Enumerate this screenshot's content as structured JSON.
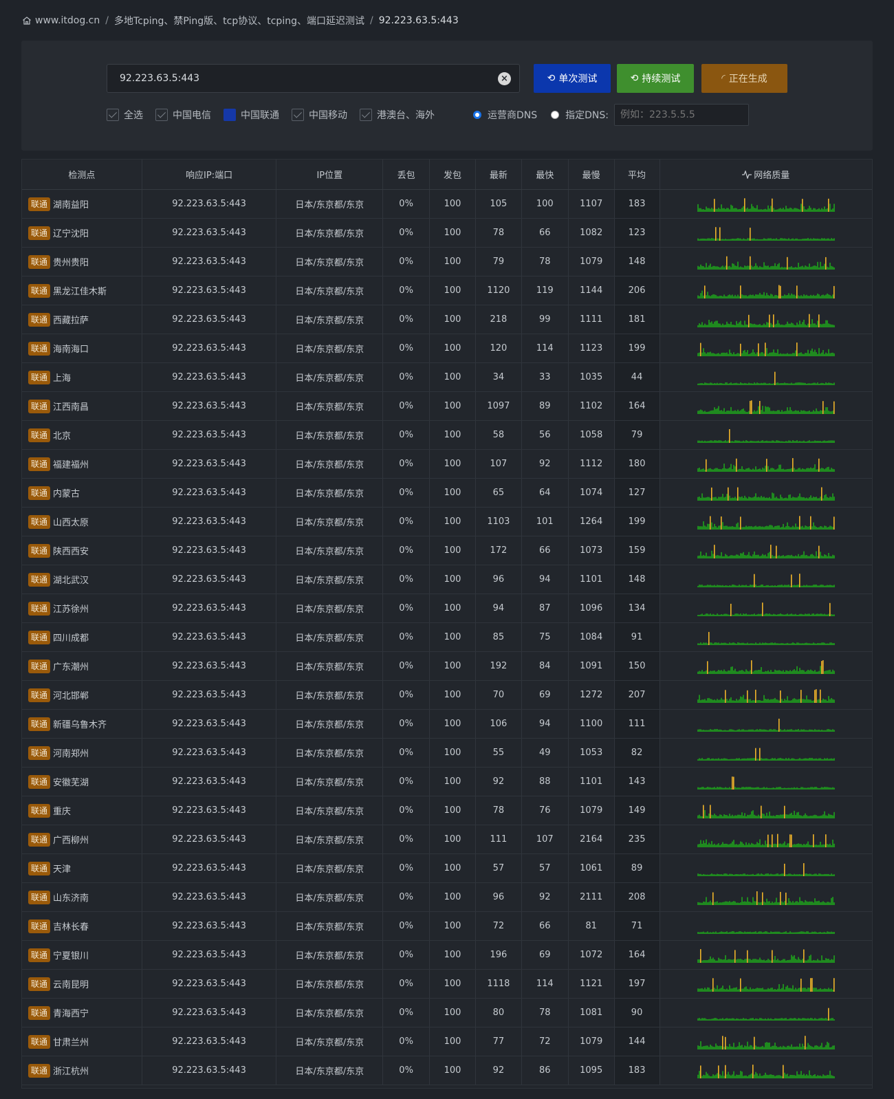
{
  "breadcrumb": {
    "home": "www.itdog.cn",
    "section": "多地Tcping、禁Ping版、tcp协议、tcping、端口延迟测试",
    "current": "92.223.63.5:443"
  },
  "search": {
    "value": "92.223.63.5:443",
    "clear_label": "×"
  },
  "buttons": {
    "single": "单次测试",
    "continuous": "持续测试",
    "generating": "正在生成"
  },
  "filters": [
    {
      "label": "全选",
      "style": "check"
    },
    {
      "label": "中国电信",
      "style": "check"
    },
    {
      "label": "中国联通",
      "style": "selected"
    },
    {
      "label": "中国移动",
      "style": "check"
    },
    {
      "label": "港澳台、海外",
      "style": "check"
    }
  ],
  "dns": {
    "isp_label": "运营商DNS",
    "custom_label": "指定DNS:",
    "custom_placeholder": "例如：223.5.5.5"
  },
  "table": {
    "headers": [
      "检测点",
      "响应IP:端口",
      "IP位置",
      "丢包",
      "发包",
      "最新",
      "最快",
      "最慢",
      "平均",
      "网络质量"
    ],
    "rows": [
      {
        "isp": "联通",
        "node": "湖南益阳",
        "ip": "92.223.63.5:443",
        "loc": "日本/东京都/东京",
        "loss": "0%",
        "sent": "100",
        "last": "105",
        "min": "100",
        "max": "1107",
        "avg": "183"
      },
      {
        "isp": "联通",
        "node": "辽宁沈阳",
        "ip": "92.223.63.5:443",
        "loc": "日本/东京都/东京",
        "loss": "0%",
        "sent": "100",
        "last": "78",
        "min": "66",
        "max": "1082",
        "avg": "123"
      },
      {
        "isp": "联通",
        "node": "贵州贵阳",
        "ip": "92.223.63.5:443",
        "loc": "日本/东京都/东京",
        "loss": "0%",
        "sent": "100",
        "last": "79",
        "min": "78",
        "max": "1079",
        "avg": "148"
      },
      {
        "isp": "联通",
        "node": "黑龙江佳木斯",
        "ip": "92.223.63.5:443",
        "loc": "日本/东京都/东京",
        "loss": "0%",
        "sent": "100",
        "last": "1120",
        "min": "119",
        "max": "1144",
        "avg": "206"
      },
      {
        "isp": "联通",
        "node": "西藏拉萨",
        "ip": "92.223.63.5:443",
        "loc": "日本/东京都/东京",
        "loss": "0%",
        "sent": "100",
        "last": "218",
        "min": "99",
        "max": "1111",
        "avg": "181"
      },
      {
        "isp": "联通",
        "node": "海南海口",
        "ip": "92.223.63.5:443",
        "loc": "日本/东京都/东京",
        "loss": "0%",
        "sent": "100",
        "last": "120",
        "min": "114",
        "max": "1123",
        "avg": "199"
      },
      {
        "isp": "联通",
        "node": "上海",
        "ip": "92.223.63.5:443",
        "loc": "日本/东京都/东京",
        "loss": "0%",
        "sent": "100",
        "last": "34",
        "min": "33",
        "max": "1035",
        "avg": "44"
      },
      {
        "isp": "联通",
        "node": "江西南昌",
        "ip": "92.223.63.5:443",
        "loc": "日本/东京都/东京",
        "loss": "0%",
        "sent": "100",
        "last": "1097",
        "min": "89",
        "max": "1102",
        "avg": "164"
      },
      {
        "isp": "联通",
        "node": "北京",
        "ip": "92.223.63.5:443",
        "loc": "日本/东京都/东京",
        "loss": "0%",
        "sent": "100",
        "last": "58",
        "min": "56",
        "max": "1058",
        "avg": "79"
      },
      {
        "isp": "联通",
        "node": "福建福州",
        "ip": "92.223.63.5:443",
        "loc": "日本/东京都/东京",
        "loss": "0%",
        "sent": "100",
        "last": "107",
        "min": "92",
        "max": "1112",
        "avg": "180"
      },
      {
        "isp": "联通",
        "node": "内蒙古",
        "ip": "92.223.63.5:443",
        "loc": "日本/东京都/东京",
        "loss": "0%",
        "sent": "100",
        "last": "65",
        "min": "64",
        "max": "1074",
        "avg": "127"
      },
      {
        "isp": "联通",
        "node": "山西太原",
        "ip": "92.223.63.5:443",
        "loc": "日本/东京都/东京",
        "loss": "0%",
        "sent": "100",
        "last": "1103",
        "min": "101",
        "max": "1264",
        "avg": "199"
      },
      {
        "isp": "联通",
        "node": "陕西西安",
        "ip": "92.223.63.5:443",
        "loc": "日本/东京都/东京",
        "loss": "0%",
        "sent": "100",
        "last": "172",
        "min": "66",
        "max": "1073",
        "avg": "159"
      },
      {
        "isp": "联通",
        "node": "湖北武汉",
        "ip": "92.223.63.5:443",
        "loc": "日本/东京都/东京",
        "loss": "0%",
        "sent": "100",
        "last": "96",
        "min": "94",
        "max": "1101",
        "avg": "148"
      },
      {
        "isp": "联通",
        "node": "江苏徐州",
        "ip": "92.223.63.5:443",
        "loc": "日本/东京都/东京",
        "loss": "0%",
        "sent": "100",
        "last": "94",
        "min": "87",
        "max": "1096",
        "avg": "134"
      },
      {
        "isp": "联通",
        "node": "四川成都",
        "ip": "92.223.63.5:443",
        "loc": "日本/东京都/东京",
        "loss": "0%",
        "sent": "100",
        "last": "85",
        "min": "75",
        "max": "1084",
        "avg": "91"
      },
      {
        "isp": "联通",
        "node": "广东潮州",
        "ip": "92.223.63.5:443",
        "loc": "日本/东京都/东京",
        "loss": "0%",
        "sent": "100",
        "last": "192",
        "min": "84",
        "max": "1091",
        "avg": "150"
      },
      {
        "isp": "联通",
        "node": "河北邯郸",
        "ip": "92.223.63.5:443",
        "loc": "日本/东京都/东京",
        "loss": "0%",
        "sent": "100",
        "last": "70",
        "min": "69",
        "max": "1272",
        "avg": "207"
      },
      {
        "isp": "联通",
        "node": "新疆乌鲁木齐",
        "ip": "92.223.63.5:443",
        "loc": "日本/东京都/东京",
        "loss": "0%",
        "sent": "100",
        "last": "106",
        "min": "94",
        "max": "1100",
        "avg": "111"
      },
      {
        "isp": "联通",
        "node": "河南郑州",
        "ip": "92.223.63.5:443",
        "loc": "日本/东京都/东京",
        "loss": "0%",
        "sent": "100",
        "last": "55",
        "min": "49",
        "max": "1053",
        "avg": "82"
      },
      {
        "isp": "联通",
        "node": "安徽芜湖",
        "ip": "92.223.63.5:443",
        "loc": "日本/东京都/东京",
        "loss": "0%",
        "sent": "100",
        "last": "92",
        "min": "88",
        "max": "1101",
        "avg": "143"
      },
      {
        "isp": "联通",
        "node": "重庆",
        "ip": "92.223.63.5:443",
        "loc": "日本/东京都/东京",
        "loss": "0%",
        "sent": "100",
        "last": "78",
        "min": "76",
        "max": "1079",
        "avg": "149"
      },
      {
        "isp": "联通",
        "node": "广西柳州",
        "ip": "92.223.63.5:443",
        "loc": "日本/东京都/东京",
        "loss": "0%",
        "sent": "100",
        "last": "111",
        "min": "107",
        "max": "2164",
        "avg": "235"
      },
      {
        "isp": "联通",
        "node": "天津",
        "ip": "92.223.63.5:443",
        "loc": "日本/东京都/东京",
        "loss": "0%",
        "sent": "100",
        "last": "57",
        "min": "57",
        "max": "1061",
        "avg": "89"
      },
      {
        "isp": "联通",
        "node": "山东济南",
        "ip": "92.223.63.5:443",
        "loc": "日本/东京都/东京",
        "loss": "0%",
        "sent": "100",
        "last": "96",
        "min": "92",
        "max": "2111",
        "avg": "208"
      },
      {
        "isp": "联通",
        "node": "吉林长春",
        "ip": "92.223.63.5:443",
        "loc": "日本/东京都/东京",
        "loss": "0%",
        "sent": "100",
        "last": "72",
        "min": "66",
        "max": "81",
        "avg": "71"
      },
      {
        "isp": "联通",
        "node": "宁夏银川",
        "ip": "92.223.63.5:443",
        "loc": "日本/东京都/东京",
        "loss": "0%",
        "sent": "100",
        "last": "196",
        "min": "69",
        "max": "1072",
        "avg": "164"
      },
      {
        "isp": "联通",
        "node": "云南昆明",
        "ip": "92.223.63.5:443",
        "loc": "日本/东京都/东京",
        "loss": "0%",
        "sent": "100",
        "last": "1118",
        "min": "114",
        "max": "1121",
        "avg": "197"
      },
      {
        "isp": "联通",
        "node": "青海西宁",
        "ip": "92.223.63.5:443",
        "loc": "日本/东京都/东京",
        "loss": "0%",
        "sent": "100",
        "last": "80",
        "min": "78",
        "max": "1081",
        "avg": "90"
      },
      {
        "isp": "联通",
        "node": "甘肃兰州",
        "ip": "92.223.63.5:443",
        "loc": "日本/东京都/东京",
        "loss": "0%",
        "sent": "100",
        "last": "77",
        "min": "72",
        "max": "1079",
        "avg": "144"
      },
      {
        "isp": "联通",
        "node": "浙江杭州",
        "ip": "92.223.63.5:443",
        "loc": "日本/东京都/东京",
        "loss": "0%",
        "sent": "100",
        "last": "92",
        "min": "86",
        "max": "1095",
        "avg": "183"
      }
    ]
  },
  "colors": {
    "good": "#1f8a1f",
    "spike": "#f0b42a",
    "isp_badge": "#9a5a0a",
    "btn_single": "#0b37ad",
    "btn_cont": "#3f8f2e",
    "btn_gen": "#8a5610"
  }
}
